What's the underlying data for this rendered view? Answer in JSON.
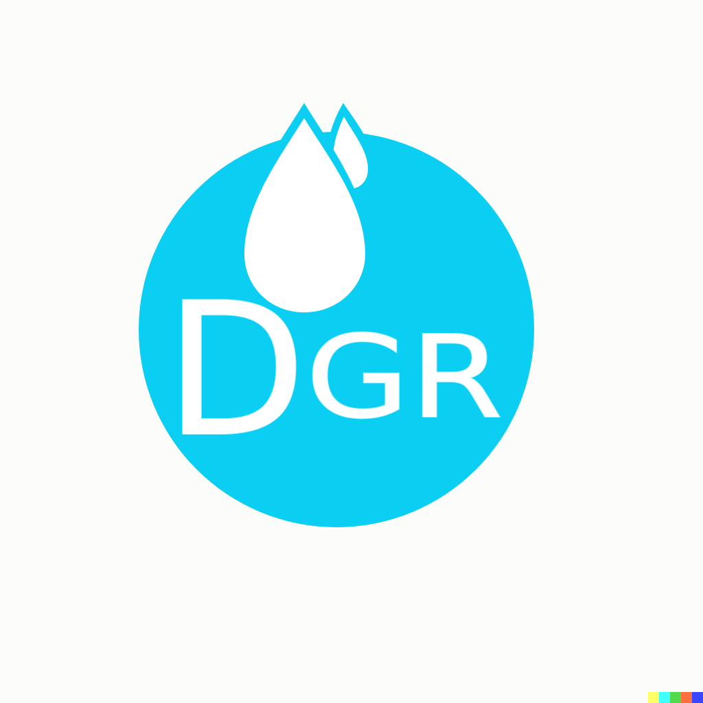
{
  "logo": {
    "letter_large": "D",
    "letters_small": "GR",
    "circle_color": "#0bcff2",
    "drop_color": "#ffffff",
    "text_color": "#ffffff",
    "drop_count": 2
  },
  "watermark": {
    "colors": [
      "#ffff66",
      "#42ffff",
      "#51da4c",
      "#ff6e3c",
      "#3c46ff"
    ]
  }
}
